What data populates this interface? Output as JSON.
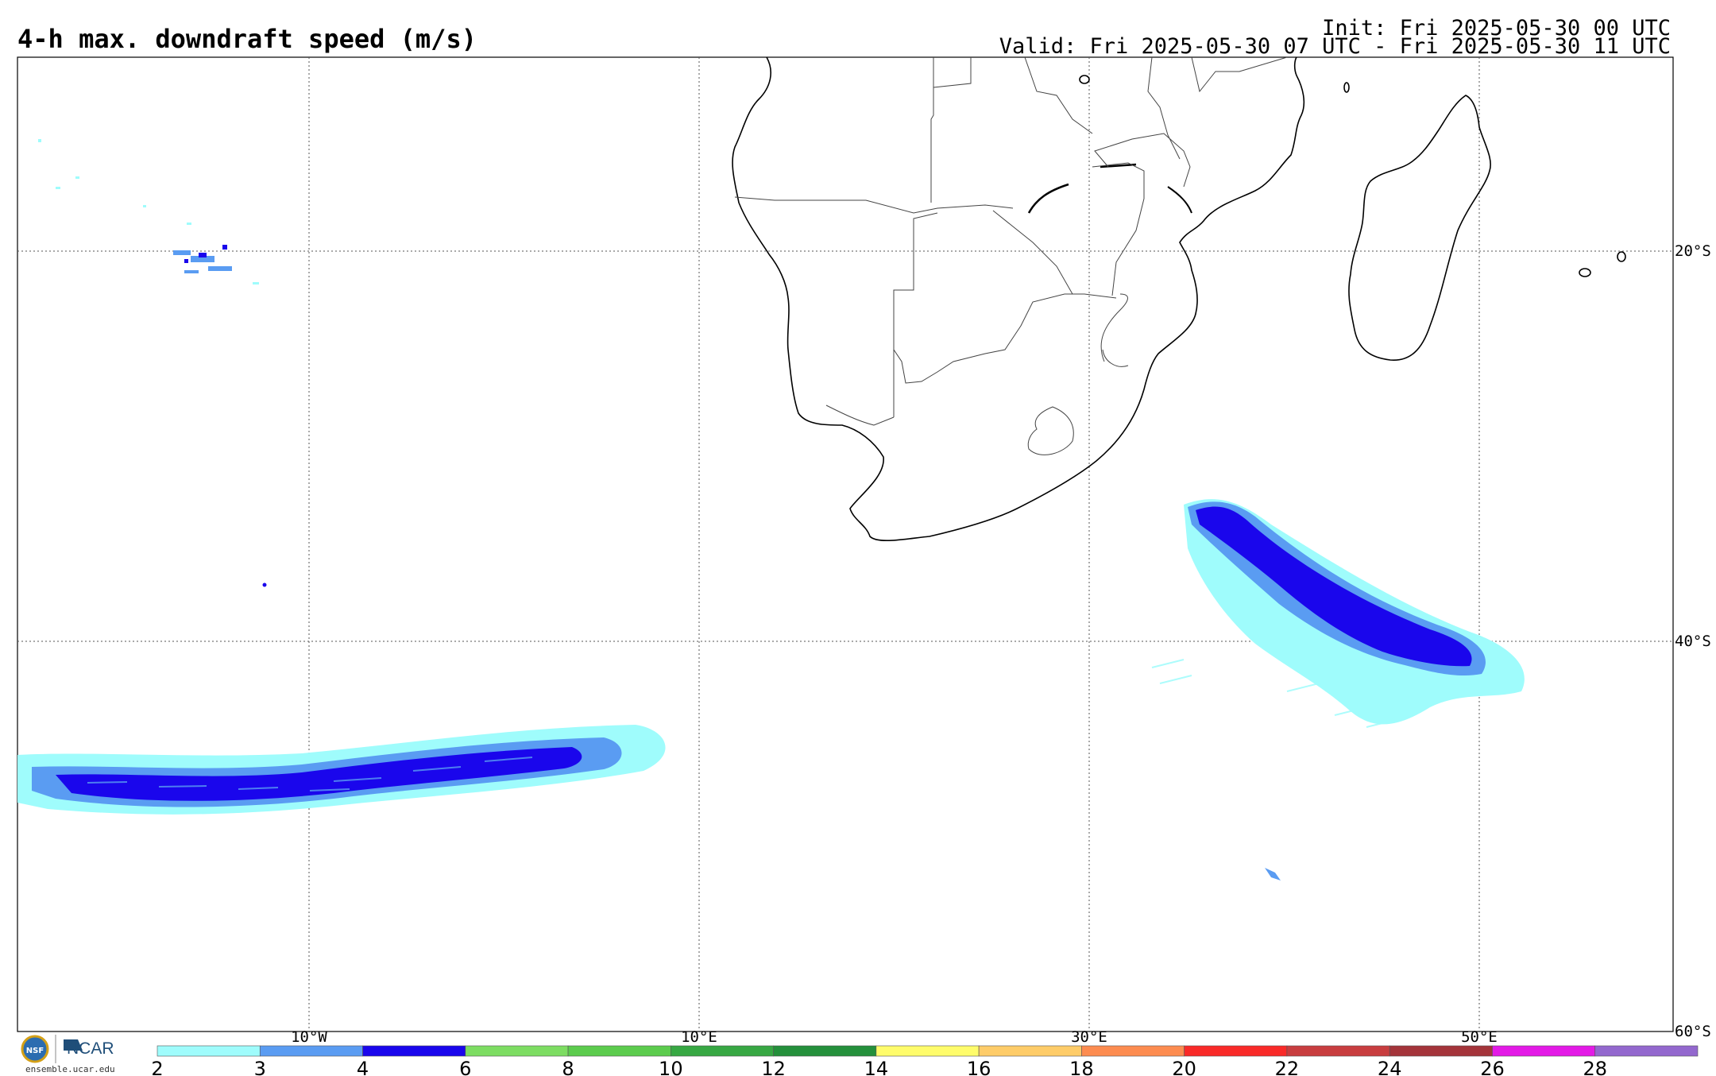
{
  "header": {
    "title": "4-h max. downdraft speed (m/s)",
    "init": "Init: Fri 2025-05-30 00 UTC",
    "valid": "Valid: Fri 2025-05-30 07 UTC - Fri 2025-05-30 11 UTC"
  },
  "map": {
    "region": "Southern Africa and South Atlantic / Southwest Indian Ocean",
    "longitude_labels": [
      "10°W",
      "10°E",
      "30°E",
      "50°E"
    ],
    "latitude_labels": [
      "20°S",
      "40°S",
      "60°S"
    ],
    "gridlines": "dotted",
    "features": [
      "coastlines",
      "country borders",
      "Madagascar"
    ]
  },
  "colorbar": {
    "tick_labels": [
      "2",
      "3",
      "4",
      "6",
      "8",
      "10",
      "12",
      "14",
      "16",
      "18",
      "20",
      "22",
      "24",
      "26",
      "28"
    ],
    "colors": [
      "#9ffcfc",
      "#5a9cf2",
      "#1a06ec",
      "#7ddd62",
      "#5ccc4d",
      "#37a843",
      "#24903b",
      "#fffc6b",
      "#fecc69",
      "#fd8c50",
      "#f92a28",
      "#c83d3f",
      "#a4343a",
      "#e31ae6",
      "#9368ce"
    ]
  },
  "footer": {
    "logo_nsf": "NSF",
    "logo_ncar": "NCAR",
    "url": "ensemble.ucar.edu"
  }
}
